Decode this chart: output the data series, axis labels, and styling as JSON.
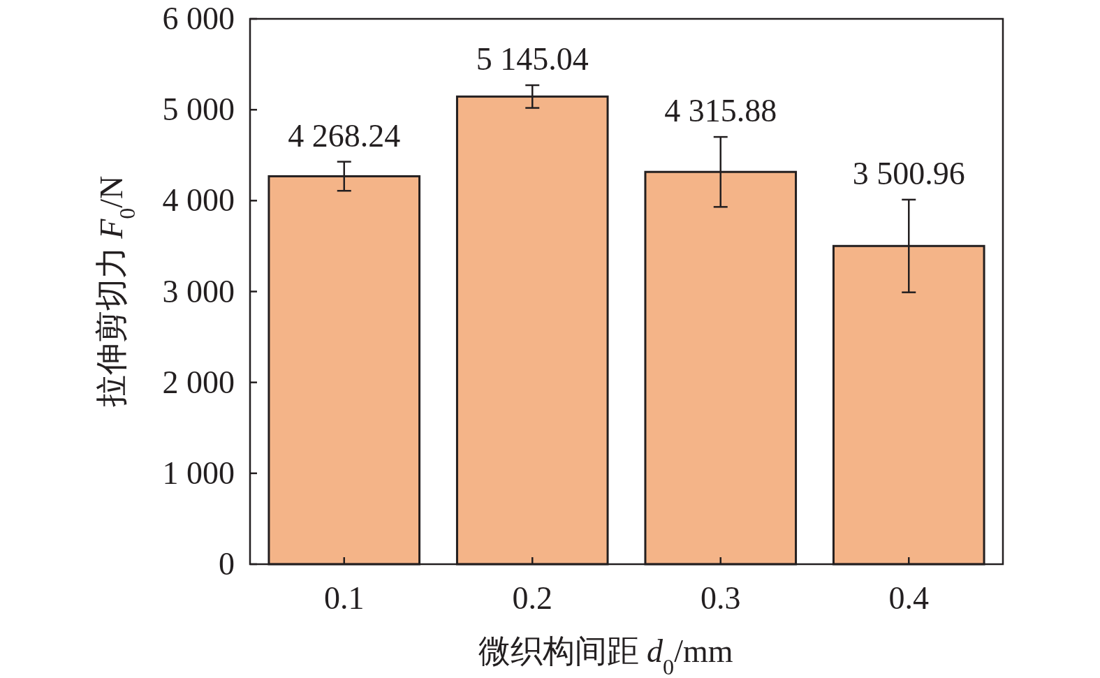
{
  "chart_data": {
    "type": "bar",
    "xlabel": "微织构间距 d$_{0}$/mm",
    "ylabel": "拉伸剪切力 F$_{0}$/N",
    "categories": [
      "0.1",
      "0.2",
      "0.3",
      "0.4"
    ],
    "values": [
      4268.24,
      5145.04,
      4315.88,
      3500.96
    ],
    "value_labels": [
      "4 268.24",
      "5 145.04",
      "4 315.88",
      "3 500.96"
    ],
    "errors": [
      160,
      125,
      385,
      510
    ],
    "color": "#f4b488",
    "ylim": [
      0,
      6000
    ],
    "yticks": [
      {
        "value": 0,
        "label": "0"
      },
      {
        "value": 1000,
        "label": "1 000"
      },
      {
        "value": 2000,
        "label": "2 000"
      },
      {
        "value": 3000,
        "label": "3 000"
      },
      {
        "value": 4000,
        "label": "4 000"
      },
      {
        "value": 5000,
        "label": "5 000"
      },
      {
        "value": 6000,
        "label": "6 000"
      }
    ],
    "grid": false
  }
}
